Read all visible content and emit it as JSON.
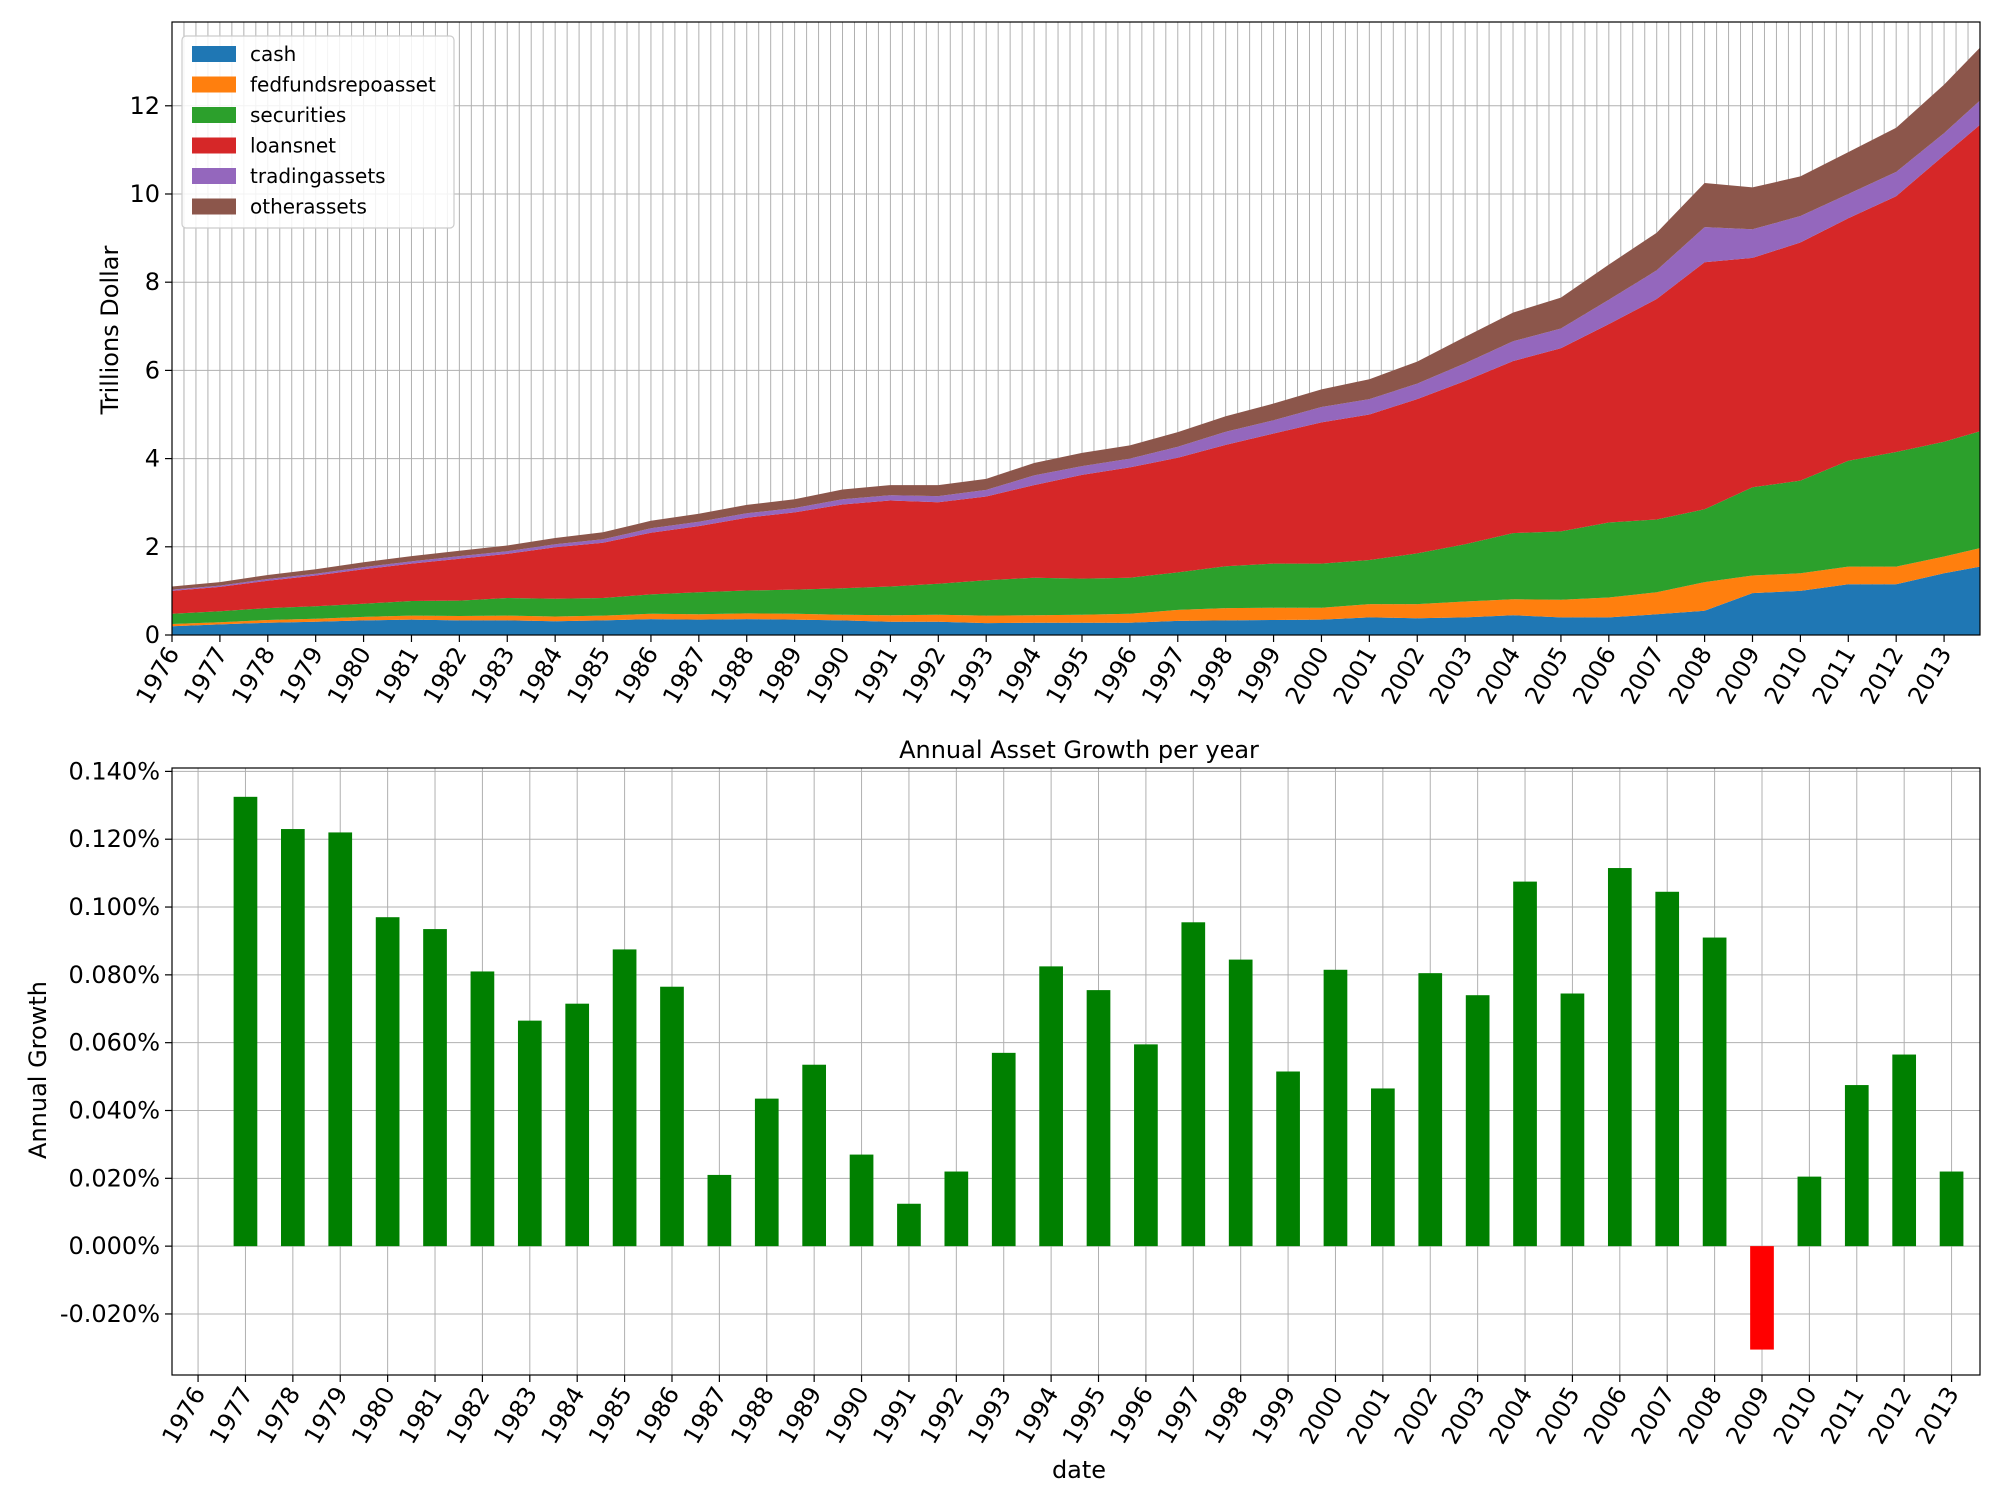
{
  "chart_data": [
    {
      "type": "area",
      "stacked": true,
      "title": "",
      "xlabel": "",
      "ylabel": "Trillions Dollar",
      "ylim": [
        0,
        13.9
      ],
      "yticks": [
        0,
        2,
        4,
        6,
        8,
        10,
        12
      ],
      "xlim": [
        1976.0,
        2013.75
      ],
      "x_tick_labels": [
        "1976",
        "1977",
        "1978",
        "1979",
        "1980",
        "1981",
        "1982",
        "1983",
        "1984",
        "1985",
        "1986",
        "1987",
        "1988",
        "1989",
        "1990",
        "1991",
        "1992",
        "1993",
        "1994",
        "1995",
        "1996",
        "1997",
        "1998",
        "1999",
        "2000",
        "2001",
        "2002",
        "2003",
        "2004",
        "2005",
        "2006",
        "2007",
        "2008",
        "2009",
        "2010",
        "2011",
        "2012",
        "2013"
      ],
      "grid": true,
      "legend_position": "top-left",
      "x": [
        1976,
        1977,
        1978,
        1979,
        1980,
        1981,
        1982,
        1983,
        1984,
        1985,
        1986,
        1987,
        1988,
        1989,
        1990,
        1991,
        1992,
        1993,
        1994,
        1995,
        1996,
        1997,
        1998,
        1999,
        2000,
        2001,
        2002,
        2003,
        2004,
        2005,
        2006,
        2007,
        2008,
        2009,
        2010,
        2011,
        2012,
        2013,
        2013.75
      ],
      "series": [
        {
          "name": "cash",
          "color": "#1f77b4",
          "values": [
            0.2,
            0.24,
            0.28,
            0.3,
            0.33,
            0.35,
            0.33,
            0.33,
            0.31,
            0.33,
            0.36,
            0.35,
            0.36,
            0.35,
            0.33,
            0.3,
            0.3,
            0.27,
            0.28,
            0.28,
            0.28,
            0.32,
            0.33,
            0.34,
            0.35,
            0.4,
            0.38,
            0.4,
            0.45,
            0.4,
            0.4,
            0.47,
            0.55,
            0.95,
            1.0,
            1.15,
            1.15,
            1.4,
            1.55
          ]
        },
        {
          "name": "fedfundsrepoasset",
          "color": "#ff7f0e",
          "values": [
            0.05,
            0.05,
            0.06,
            0.07,
            0.08,
            0.09,
            0.1,
            0.11,
            0.11,
            0.11,
            0.12,
            0.12,
            0.13,
            0.13,
            0.13,
            0.15,
            0.16,
            0.17,
            0.17,
            0.18,
            0.2,
            0.25,
            0.28,
            0.28,
            0.27,
            0.3,
            0.32,
            0.36,
            0.36,
            0.4,
            0.45,
            0.5,
            0.65,
            0.4,
            0.4,
            0.4,
            0.4,
            0.38,
            0.42
          ]
        },
        {
          "name": "securities",
          "color": "#2ca02c",
          "values": [
            0.23,
            0.25,
            0.27,
            0.28,
            0.3,
            0.33,
            0.35,
            0.4,
            0.4,
            0.4,
            0.44,
            0.5,
            0.52,
            0.55,
            0.6,
            0.65,
            0.7,
            0.8,
            0.85,
            0.82,
            0.82,
            0.85,
            0.95,
            1.0,
            1.0,
            1.0,
            1.15,
            1.3,
            1.5,
            1.55,
            1.7,
            1.65,
            1.65,
            2.0,
            2.1,
            2.4,
            2.6,
            2.6,
            2.65
          ]
        },
        {
          "name": "loansnet",
          "color": "#d62728",
          "values": [
            0.52,
            0.55,
            0.62,
            0.7,
            0.78,
            0.85,
            0.95,
            1.0,
            1.17,
            1.25,
            1.4,
            1.5,
            1.65,
            1.75,
            1.9,
            1.95,
            1.85,
            1.9,
            2.1,
            2.35,
            2.5,
            2.6,
            2.75,
            2.95,
            3.2,
            3.3,
            3.5,
            3.7,
            3.9,
            4.15,
            4.5,
            5.0,
            5.6,
            5.2,
            5.4,
            5.5,
            5.8,
            6.5,
            6.95
          ]
        },
        {
          "name": "tradingassets",
          "color": "#9467bd",
          "values": [
            0.03,
            0.03,
            0.04,
            0.04,
            0.05,
            0.05,
            0.06,
            0.06,
            0.07,
            0.08,
            0.1,
            0.1,
            0.1,
            0.1,
            0.12,
            0.12,
            0.14,
            0.15,
            0.22,
            0.2,
            0.2,
            0.25,
            0.3,
            0.3,
            0.35,
            0.35,
            0.35,
            0.4,
            0.45,
            0.45,
            0.55,
            0.65,
            0.8,
            0.65,
            0.6,
            0.55,
            0.55,
            0.5,
            0.55
          ]
        },
        {
          "name": "otherassets",
          "color": "#8c564b",
          "values": [
            0.07,
            0.08,
            0.09,
            0.1,
            0.11,
            0.12,
            0.12,
            0.13,
            0.14,
            0.16,
            0.17,
            0.18,
            0.19,
            0.2,
            0.22,
            0.23,
            0.25,
            0.25,
            0.28,
            0.3,
            0.3,
            0.33,
            0.35,
            0.38,
            0.4,
            0.45,
            0.5,
            0.6,
            0.65,
            0.7,
            0.8,
            0.85,
            1.0,
            0.95,
            0.9,
            0.95,
            1.0,
            1.1,
            1.2
          ]
        }
      ]
    },
    {
      "type": "bar",
      "title": "Annual Asset Growth per year",
      "xlabel": "date",
      "ylabel": "Annual Growth",
      "ylim": [
        -0.038,
        0.141
      ],
      "yticks": [
        -0.02,
        0.0,
        0.02,
        0.04,
        0.06,
        0.08,
        0.1,
        0.12,
        0.14
      ],
      "ytick_labels": [
        "-0.020%",
        "0.000%",
        "0.020%",
        "0.040%",
        "0.060%",
        "0.080%",
        "0.100%",
        "0.120%",
        "0.140%"
      ],
      "grid": true,
      "positive_color": "#008000",
      "negative_color": "#ff0000",
      "categories": [
        "1976",
        "1977",
        "1978",
        "1979",
        "1980",
        "1981",
        "1982",
        "1983",
        "1984",
        "1985",
        "1986",
        "1987",
        "1988",
        "1989",
        "1990",
        "1991",
        "1992",
        "1993",
        "1994",
        "1995",
        "1996",
        "1997",
        "1998",
        "1999",
        "2000",
        "2001",
        "2002",
        "2003",
        "2004",
        "2005",
        "2006",
        "2007",
        "2008",
        "2009",
        "2010",
        "2011",
        "2012",
        "2013"
      ],
      "values": [
        null,
        0.1325,
        0.123,
        0.122,
        0.097,
        0.0935,
        0.081,
        0.0665,
        0.0715,
        0.0875,
        0.0765,
        0.021,
        0.0435,
        0.0535,
        0.027,
        0.0125,
        0.022,
        0.057,
        0.0825,
        0.0755,
        0.0595,
        0.0955,
        0.0845,
        0.0515,
        0.0815,
        0.0465,
        0.0805,
        0.074,
        0.1075,
        0.0745,
        0.1115,
        0.1045,
        0.091,
        -0.0305,
        0.0205,
        0.0475,
        0.0565,
        0.022
      ]
    }
  ]
}
